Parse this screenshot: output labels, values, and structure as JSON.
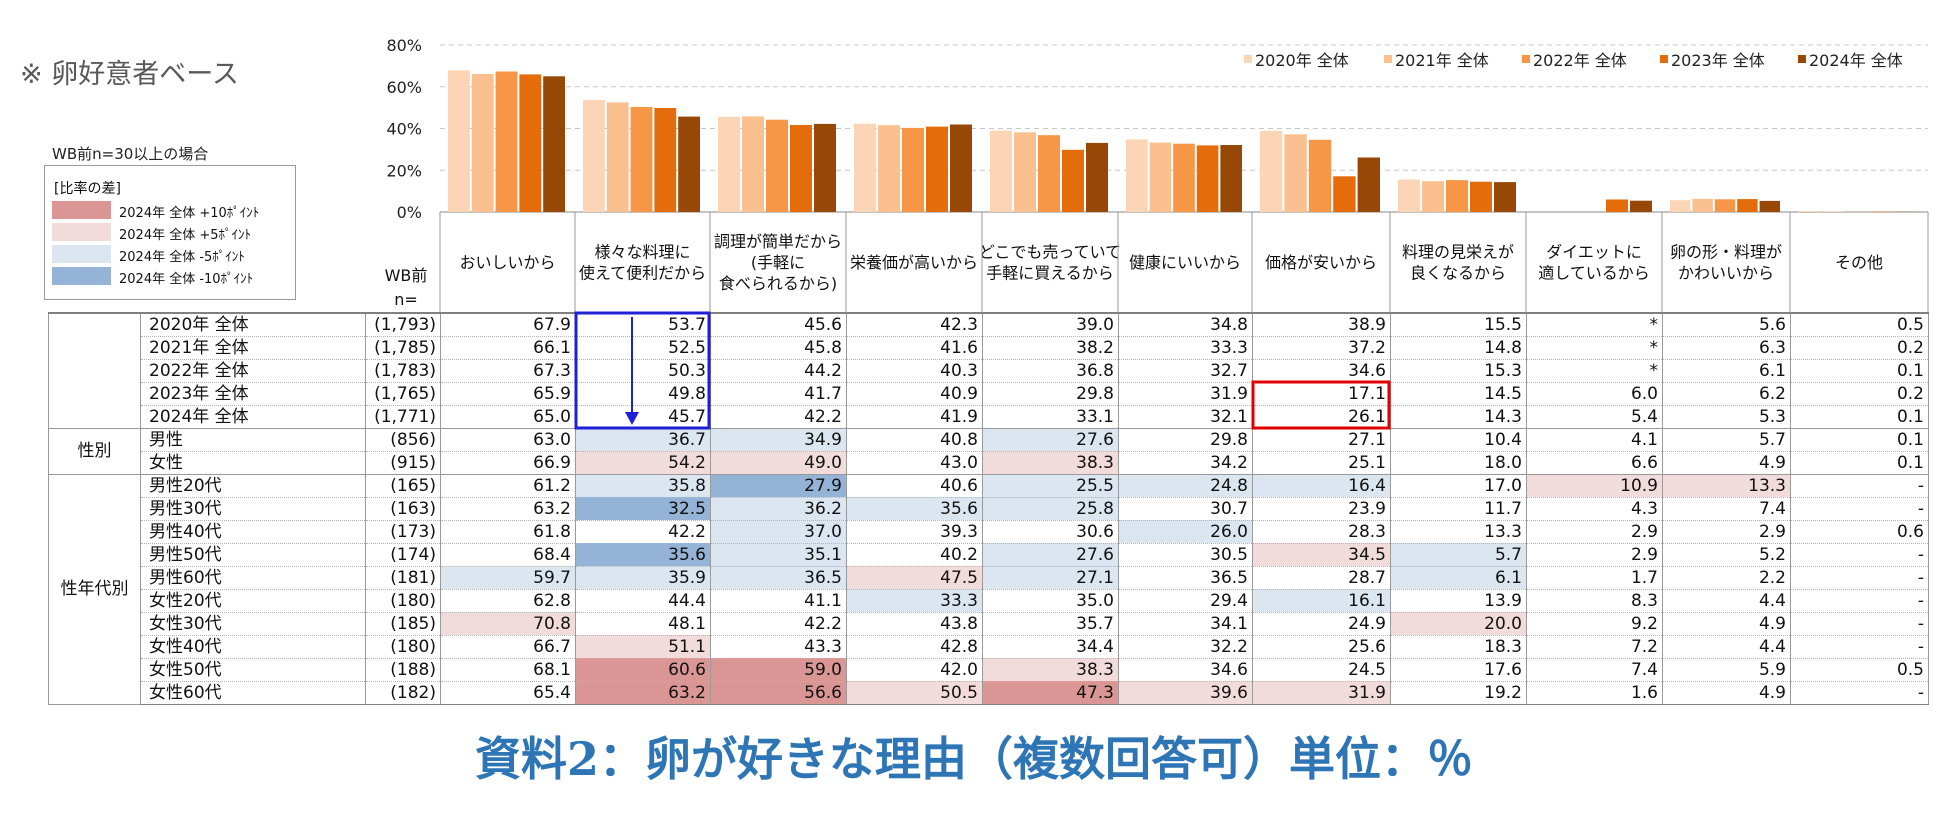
{
  "base_note": "※ 卵好意者ベース",
  "wb_note": "WB前n=30以上の場合",
  "diff_legend": {
    "title": "[比率の差]",
    "items": [
      {
        "label": "2024年 全体 +10ﾎﾟｲﾝﾄ",
        "color": "#da9694"
      },
      {
        "label": "2024年 全体  +5ﾎﾟｲﾝﾄ",
        "color": "#f2dcdb"
      },
      {
        "label": "2024年 全体  -5ﾎﾟｲﾝﾄ",
        "color": "#dce6f1"
      },
      {
        "label": "2024年 全体 -10ﾎﾟｲﾝﾄ",
        "color": "#95b3d7"
      }
    ]
  },
  "header": {
    "wb_label": "WB前",
    "n_label": "n="
  },
  "colors": {
    "up10": "#da9694",
    "up5": "#f2dcdb",
    "down5": "#dce6f1",
    "down10": "#95b3d7",
    "highlight_blue": "#1f1fd6",
    "highlight_red": "#e00000"
  },
  "caption": "資料2：卵が好きな理由（複数回答可）単位：％",
  "chart_data": {
    "type": "bar",
    "ylim": [
      0,
      80
    ],
    "yticks": [
      "0%",
      "20%",
      "40%",
      "60%",
      "80%"
    ],
    "legend_position": "top-right",
    "categories": [
      "おいしいから",
      "様々な料理に\n使えて便利だから",
      "調理が簡単だから\n(手軽に\n食べられるから)",
      "栄養価が高いから",
      "どこでも売っていて\n手軽に買えるから",
      "健康にいいから",
      "価格が安いから",
      "料理の見栄えが\n良くなるから",
      "ダイエットに\n適しているから",
      "卵の形・料理が\nかわいいから",
      "その他"
    ],
    "series": [
      {
        "name": "2020年 全体",
        "color": "#fbd5b5",
        "values": [
          67.9,
          53.7,
          45.6,
          42.3,
          39.0,
          34.8,
          38.9,
          15.5,
          null,
          5.6,
          0.5
        ]
      },
      {
        "name": "2021年 全体",
        "color": "#fac090",
        "values": [
          66.1,
          52.5,
          45.8,
          41.6,
          38.2,
          33.3,
          37.2,
          14.8,
          null,
          6.3,
          0.2
        ]
      },
      {
        "name": "2022年 全体",
        "color": "#f79646",
        "values": [
          67.3,
          50.3,
          44.2,
          40.3,
          36.8,
          32.7,
          34.6,
          15.3,
          null,
          6.1,
          0.1
        ]
      },
      {
        "name": "2023年 全体",
        "color": "#e46c0a",
        "values": [
          65.9,
          49.8,
          41.7,
          40.9,
          29.8,
          31.9,
          17.1,
          14.5,
          6.0,
          6.2,
          0.2
        ]
      },
      {
        "name": "2024年 全体",
        "color": "#974706",
        "values": [
          65.0,
          45.7,
          42.2,
          41.9,
          33.1,
          32.1,
          26.1,
          14.3,
          5.4,
          5.3,
          0.1
        ]
      }
    ]
  },
  "table": {
    "groups": [
      {
        "label": "",
        "rows": [
          {
            "label": "2020年 全体",
            "n": "(1,793)",
            "values": [
              "67.9",
              "53.7",
              "45.6",
              "42.3",
              "39.0",
              "34.8",
              "38.9",
              "15.5",
              "*",
              "5.6",
              "0.5"
            ],
            "shade": [
              0,
              0,
              0,
              0,
              0,
              0,
              0,
              0,
              0,
              0,
              0
            ]
          },
          {
            "label": "2021年 全体",
            "n": "(1,785)",
            "values": [
              "66.1",
              "52.5",
              "45.8",
              "41.6",
              "38.2",
              "33.3",
              "37.2",
              "14.8",
              "*",
              "6.3",
              "0.2"
            ],
            "shade": [
              0,
              0,
              0,
              0,
              0,
              0,
              0,
              0,
              0,
              0,
              0
            ]
          },
          {
            "label": "2022年 全体",
            "n": "(1,783)",
            "values": [
              "67.3",
              "50.3",
              "44.2",
              "40.3",
              "36.8",
              "32.7",
              "34.6",
              "15.3",
              "*",
              "6.1",
              "0.1"
            ],
            "shade": [
              0,
              0,
              0,
              0,
              0,
              0,
              0,
              0,
              0,
              0,
              0
            ]
          },
          {
            "label": "2023年 全体",
            "n": "(1,765)",
            "values": [
              "65.9",
              "49.8",
              "41.7",
              "40.9",
              "29.8",
              "31.9",
              "17.1",
              "14.5",
              "6.0",
              "6.2",
              "0.2"
            ],
            "shade": [
              0,
              0,
              0,
              0,
              0,
              0,
              0,
              0,
              0,
              0,
              0
            ]
          },
          {
            "label": "2024年 全体",
            "n": "(1,771)",
            "values": [
              "65.0",
              "45.7",
              "42.2",
              "41.9",
              "33.1",
              "32.1",
              "26.1",
              "14.3",
              "5.4",
              "5.3",
              "0.1"
            ],
            "shade": [
              0,
              0,
              0,
              0,
              0,
              0,
              0,
              0,
              0,
              0,
              0
            ]
          }
        ]
      },
      {
        "label": "性別",
        "rows": [
          {
            "label": "男性",
            "n": "(856)",
            "values": [
              "63.0",
              "36.7",
              "34.9",
              "40.8",
              "27.6",
              "29.8",
              "27.1",
              "10.4",
              "4.1",
              "5.7",
              "0.1"
            ],
            "shade": [
              0,
              -5,
              -5,
              0,
              -5,
              0,
              0,
              0,
              0,
              0,
              0
            ]
          },
          {
            "label": "女性",
            "n": "(915)",
            "values": [
              "66.9",
              "54.2",
              "49.0",
              "43.0",
              "38.3",
              "34.2",
              "25.1",
              "18.0",
              "6.6",
              "4.9",
              "0.1"
            ],
            "shade": [
              0,
              5,
              5,
              0,
              5,
              0,
              0,
              0,
              0,
              0,
              0
            ]
          }
        ]
      },
      {
        "label": "性年代別",
        "rows": [
          {
            "label": "男性20代",
            "n": "(165)",
            "values": [
              "61.2",
              "35.8",
              "27.9",
              "40.6",
              "25.5",
              "24.8",
              "16.4",
              "17.0",
              "10.9",
              "13.3",
              "-"
            ],
            "shade": [
              0,
              -5,
              -10,
              0,
              -5,
              -5,
              -5,
              0,
              5,
              5,
              0
            ]
          },
          {
            "label": "男性30代",
            "n": "(163)",
            "values": [
              "63.2",
              "32.5",
              "36.2",
              "35.6",
              "25.8",
              "30.7",
              "23.9",
              "11.7",
              "4.3",
              "7.4",
              "-"
            ],
            "shade": [
              0,
              -10,
              -5,
              -5,
              -5,
              0,
              0,
              0,
              0,
              0,
              0
            ]
          },
          {
            "label": "男性40代",
            "n": "(173)",
            "values": [
              "61.8",
              "42.2",
              "37.0",
              "39.3",
              "30.6",
              "26.0",
              "28.3",
              "13.3",
              "2.9",
              "2.9",
              "0.6"
            ],
            "shade": [
              0,
              0,
              -5,
              0,
              0,
              -5,
              0,
              0,
              0,
              0,
              0
            ]
          },
          {
            "label": "男性50代",
            "n": "(174)",
            "values": [
              "68.4",
              "35.6",
              "35.1",
              "40.2",
              "27.6",
              "30.5",
              "34.5",
              "5.7",
              "2.9",
              "5.2",
              "-"
            ],
            "shade": [
              0,
              -10,
              -5,
              0,
              -5,
              0,
              5,
              -5,
              0,
              0,
              0
            ]
          },
          {
            "label": "男性60代",
            "n": "(181)",
            "values": [
              "59.7",
              "35.9",
              "36.5",
              "47.5",
              "27.1",
              "36.5",
              "28.7",
              "6.1",
              "1.7",
              "2.2",
              "-"
            ],
            "shade": [
              -5,
              -5,
              -5,
              5,
              -5,
              0,
              0,
              -5,
              0,
              0,
              0
            ]
          },
          {
            "label": "女性20代",
            "n": "(180)",
            "values": [
              "62.8",
              "44.4",
              "41.1",
              "33.3",
              "35.0",
              "29.4",
              "16.1",
              "13.9",
              "8.3",
              "4.4",
              "-"
            ],
            "shade": [
              0,
              0,
              0,
              -5,
              0,
              0,
              -5,
              0,
              0,
              0,
              0
            ]
          },
          {
            "label": "女性30代",
            "n": "(185)",
            "values": [
              "70.8",
              "48.1",
              "42.2",
              "43.8",
              "35.7",
              "34.1",
              "24.9",
              "20.0",
              "9.2",
              "4.9",
              "-"
            ],
            "shade": [
              5,
              0,
              0,
              0,
              0,
              0,
              0,
              5,
              0,
              0,
              0
            ]
          },
          {
            "label": "女性40代",
            "n": "(180)",
            "values": [
              "66.7",
              "51.1",
              "43.3",
              "42.8",
              "34.4",
              "32.2",
              "25.6",
              "18.3",
              "7.2",
              "4.4",
              "-"
            ],
            "shade": [
              0,
              5,
              0,
              0,
              0,
              0,
              0,
              0,
              0,
              0,
              0
            ]
          },
          {
            "label": "女性50代",
            "n": "(188)",
            "values": [
              "68.1",
              "60.6",
              "59.0",
              "42.0",
              "38.3",
              "34.6",
              "24.5",
              "17.6",
              "7.4",
              "5.9",
              "0.5"
            ],
            "shade": [
              0,
              10,
              10,
              0,
              5,
              0,
              0,
              0,
              0,
              0,
              0
            ]
          },
          {
            "label": "女性60代",
            "n": "(182)",
            "values": [
              "65.4",
              "63.2",
              "56.6",
              "50.5",
              "47.3",
              "39.6",
              "31.9",
              "19.2",
              "1.6",
              "4.9",
              "-"
            ],
            "shade": [
              0,
              10,
              10,
              5,
              10,
              5,
              5,
              0,
              0,
              0,
              0
            ]
          }
        ]
      }
    ]
  }
}
